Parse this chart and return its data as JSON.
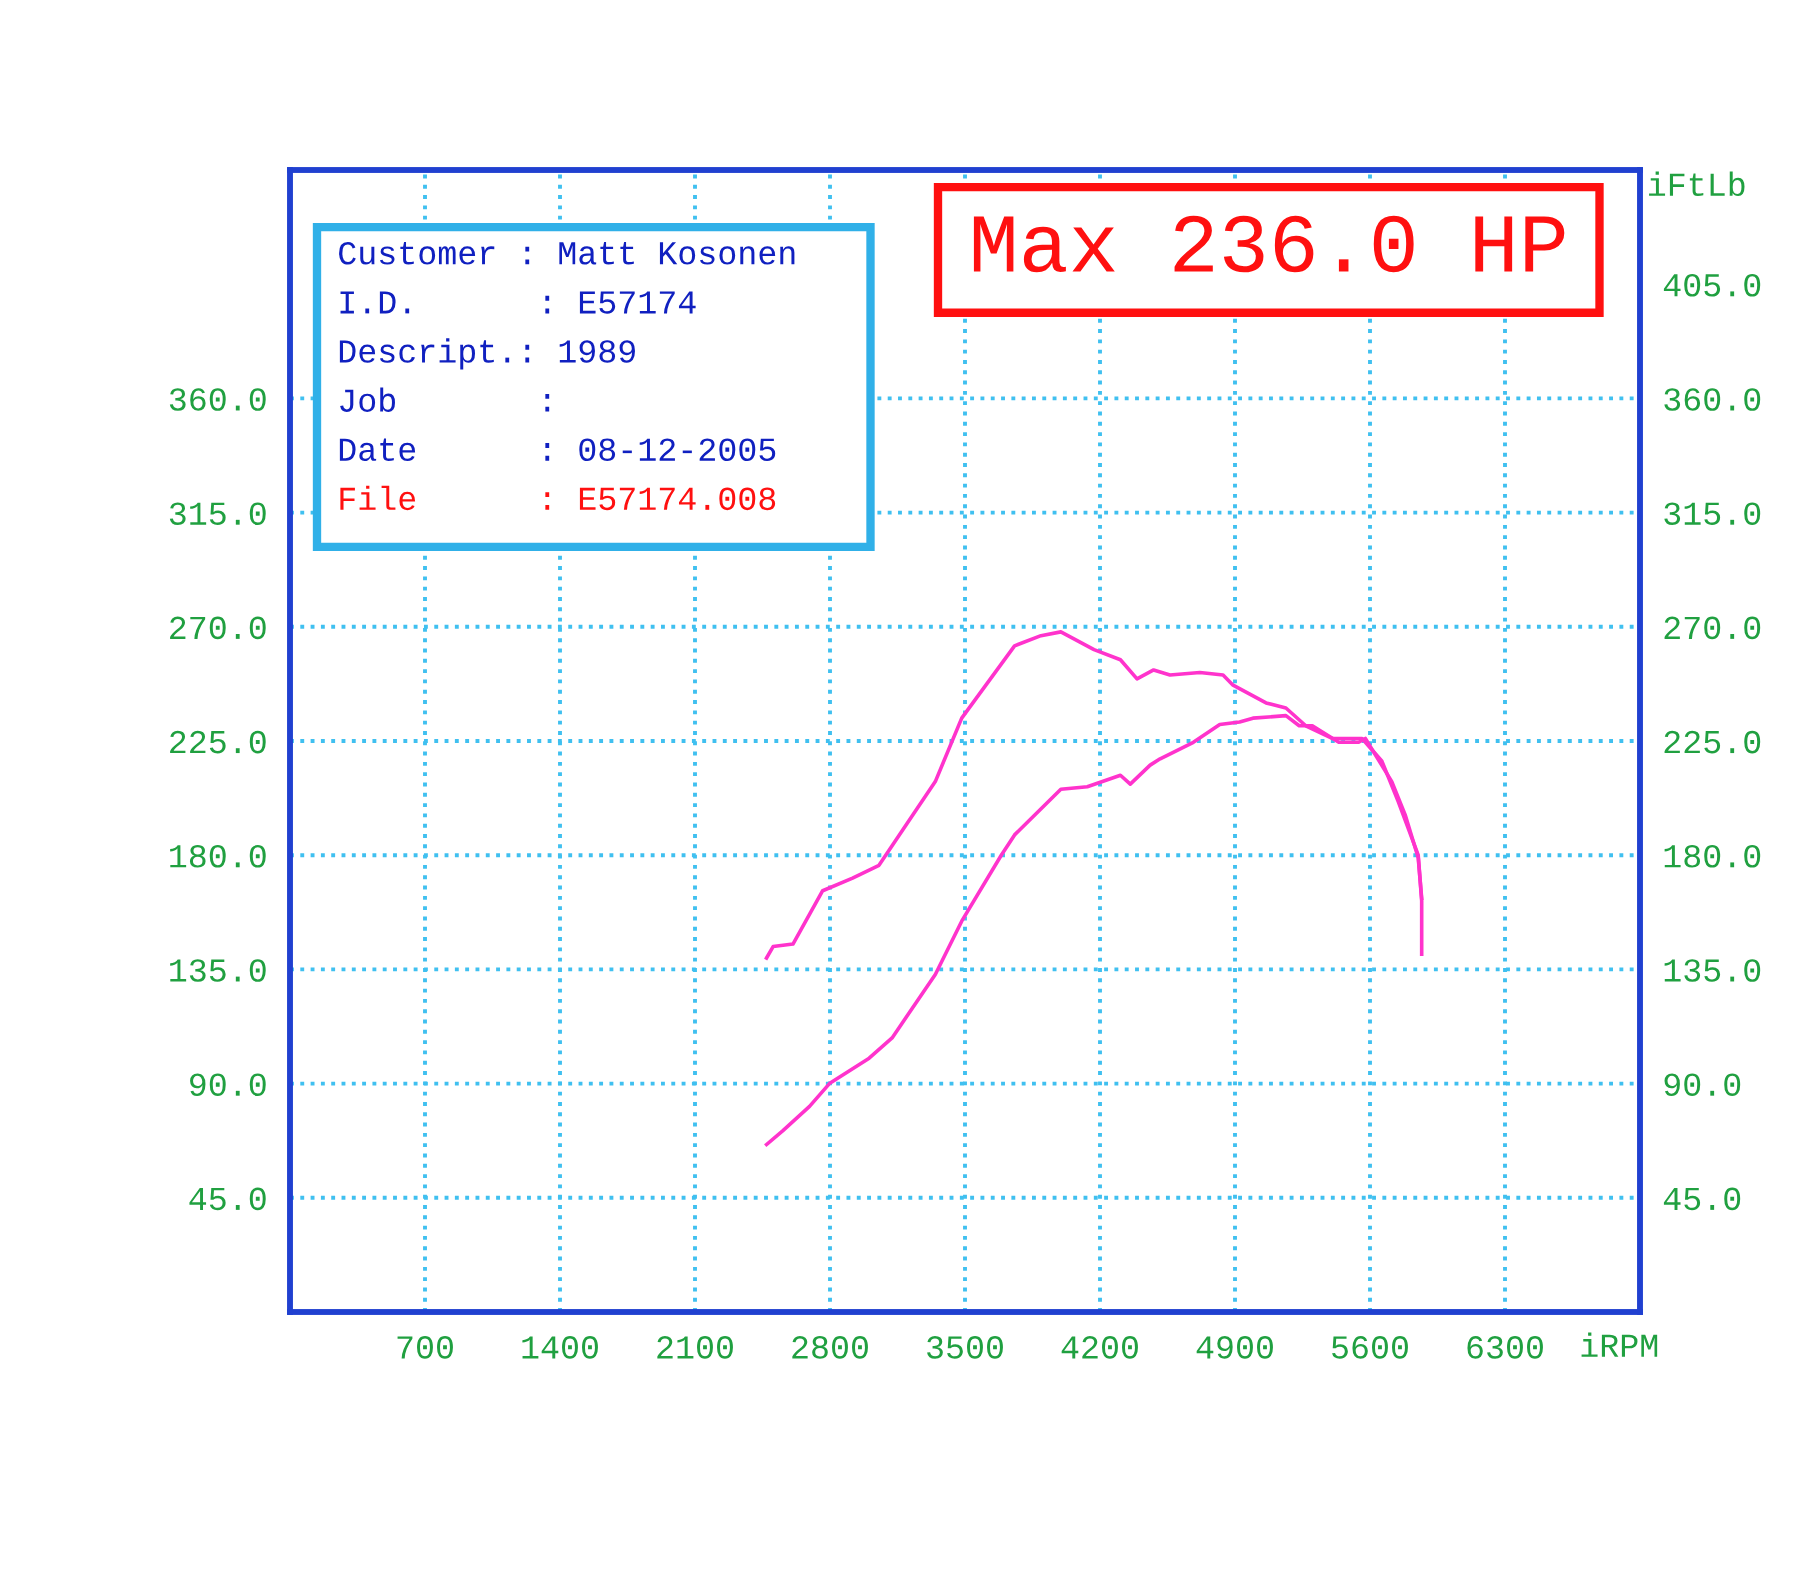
{
  "chart_data": {
    "type": "line",
    "xlabel": "iRPM",
    "y2label": "iFtLb",
    "annotations": [
      "Max 236.0 HP",
      "Customer : Matt Kosonen",
      "I.D.      : E57174",
      "Descript.: 1989",
      "Job       :",
      "Date      : 08-12-2005",
      "File      : E57174.008"
    ],
    "xlim": [
      0,
      7000
    ],
    "xticks": [
      700,
      1400,
      2100,
      2800,
      3500,
      4200,
      4900,
      5600,
      6300
    ],
    "ylim": [
      0,
      450
    ],
    "yticks": [
      {
        "value": 45,
        "label": "45.0"
      },
      {
        "value": 90,
        "label": "90.0"
      },
      {
        "value": 135,
        "label": "135.0"
      },
      {
        "value": 180,
        "label": "180.0"
      },
      {
        "value": 225,
        "label": "225.0"
      },
      {
        "value": 270,
        "label": "270.0"
      },
      {
        "value": 315,
        "label": "315.0"
      },
      {
        "value": 360,
        "label": "360.0"
      }
    ],
    "y2lim": [
      0,
      450
    ],
    "y2ticks": [
      {
        "value": 45,
        "label": "45.0"
      },
      {
        "value": 90,
        "label": "90.0"
      },
      {
        "value": 135,
        "label": "135.0"
      },
      {
        "value": 180,
        "label": "180.0"
      },
      {
        "value": 225,
        "label": "225.0"
      },
      {
        "value": 270,
        "label": "270.0"
      },
      {
        "value": 315,
        "label": "315.0"
      },
      {
        "value": 360,
        "label": "360.0"
      },
      {
        "value": 405,
        "label": "405.0"
      }
    ],
    "grid": true,
    "marker": "none",
    "line_style": "solid",
    "series": [
      {
        "color": "#ff33cc",
        "x": [
          2471,
          2505,
          2608,
          2762,
          2917,
          3054,
          3346,
          3483,
          3757,
          3894,
          3997,
          4169,
          4306,
          4392,
          4478,
          4563,
          4718,
          4838,
          4890,
          5061,
          5164,
          5267,
          5404,
          5559,
          5662,
          5747,
          5850,
          5868,
          5868
        ],
        "values": [
          139.5,
          144,
          145,
          166,
          171,
          176,
          209,
          234,
          262.5,
          266.5,
          268,
          261,
          257,
          249.5,
          253,
          251,
          252,
          251,
          247,
          240,
          238,
          231,
          226,
          226,
          217,
          201,
          180,
          162,
          141
        ]
      },
      {
        "color": "#ff33cc",
        "x": [
          2471,
          2556,
          2694,
          2797,
          3003,
          3122,
          3346,
          3483,
          3688,
          3757,
          3997,
          4134,
          4306,
          4357,
          4460,
          4512,
          4684,
          4821,
          4924,
          4993,
          5164,
          5233,
          5301,
          5438,
          5541,
          5576,
          5713,
          5782,
          5850,
          5868
        ],
        "values": [
          66,
          71.5,
          81,
          90,
          100,
          108,
          133,
          154,
          180,
          188,
          206,
          207,
          211.5,
          208,
          215.5,
          218,
          224.5,
          231.5,
          232.5,
          234,
          235,
          231,
          231,
          224.5,
          224.5,
          226,
          209,
          196,
          179,
          163
        ]
      }
    ]
  }
}
